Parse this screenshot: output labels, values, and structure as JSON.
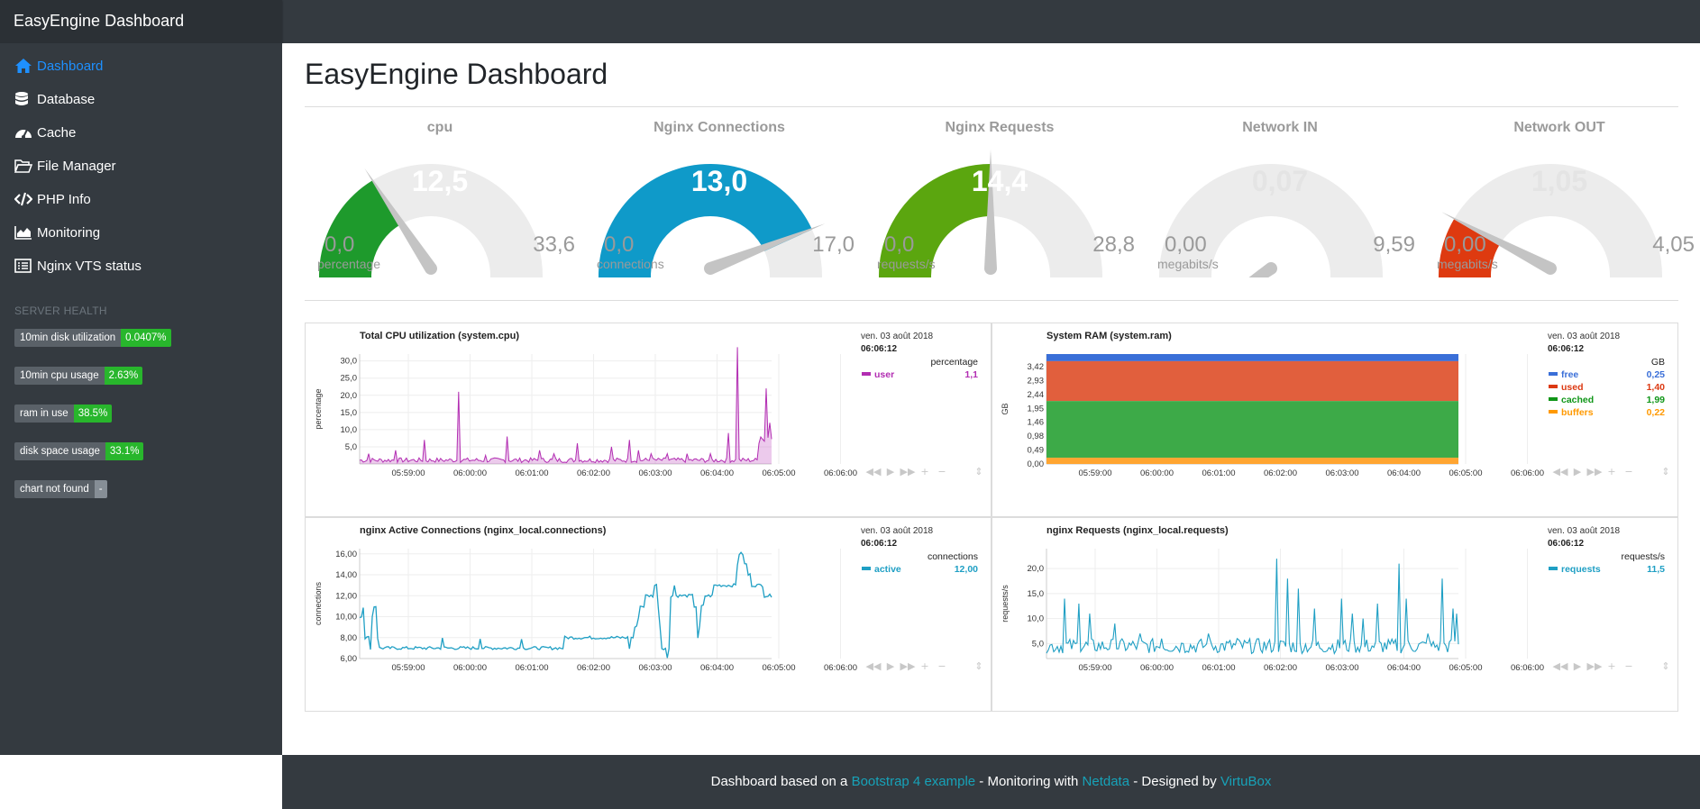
{
  "brand": "EasyEngine Dashboard",
  "nav": [
    {
      "label": "Dashboard",
      "icon": "home-icon"
    },
    {
      "label": "Database",
      "icon": "database-icon"
    },
    {
      "label": "Cache",
      "icon": "tachometer-icon"
    },
    {
      "label": "File Manager",
      "icon": "folder-open-icon"
    },
    {
      "label": "PHP Info",
      "icon": "code-icon"
    },
    {
      "label": "Monitoring",
      "icon": "area-chart-icon"
    },
    {
      "label": "Nginx VTS status",
      "icon": "list-icon"
    }
  ],
  "server_health": {
    "title": "SERVER HEALTH",
    "items": [
      {
        "label": "10min disk utilization",
        "value": "0.0407%"
      },
      {
        "label": "10min cpu usage",
        "value": "2.63%"
      },
      {
        "label": "ram in use",
        "value": "38.5%"
      },
      {
        "label": "disk space usage",
        "value": "33.1%"
      },
      {
        "label": "chart not found",
        "value": "-"
      }
    ]
  },
  "page_title": "EasyEngine Dashboard",
  "gauges": [
    {
      "title": "cpu",
      "value": "12,5",
      "min": "0,0",
      "max": "33,6",
      "unit": "percentage",
      "fraction": 0.372,
      "color": "#1e9a2c"
    },
    {
      "title": "Nginx Connections",
      "value": "13,0",
      "min": "0,0",
      "max": "17,0",
      "unit": "connections",
      "fraction": 0.765,
      "color": "#0f9ac9"
    },
    {
      "title": "Nginx Requests",
      "value": "14,4",
      "min": "0,0",
      "max": "28,8",
      "unit": "requests/s",
      "fraction": 0.5,
      "color": "#5ba60f"
    },
    {
      "title": "Network IN",
      "value": "0,07",
      "min": "0,00",
      "max": "9,59",
      "unit": "megabits/s",
      "fraction": 0.007,
      "color": "#cccccc"
    },
    {
      "title": "Network OUT",
      "value": "1,05",
      "min": "0,00",
      "max": "4,05",
      "unit": "megabits/s",
      "fraction": 0.259,
      "color": "#de3a10"
    }
  ],
  "charts": {
    "date": "ven. 03 août 2018",
    "time": "06:06:12",
    "x_ticks": [
      "05:59:00",
      "06:00:00",
      "06:01:00",
      "06:02:00",
      "06:03:00",
      "06:04:00",
      "06:05:00",
      "06:06:00"
    ],
    "cpu": {
      "title": "Total CPU utilization (system.cpu)",
      "ylabel": "percentage",
      "units": "percentage",
      "y_ticks": [
        "30,0",
        "25,0",
        "20,0",
        "15,0",
        "10,0",
        "5,0"
      ],
      "legend": [
        {
          "name": "user",
          "value": "1,1",
          "color": "#b22db2"
        }
      ]
    },
    "ram": {
      "title": "System RAM (system.ram)",
      "ylabel": "GB",
      "units": "GB",
      "y_ticks": [
        "3,42",
        "2,93",
        "2,44",
        "1,95",
        "1,46",
        "0,98",
        "0,49",
        "0,00"
      ],
      "legend": [
        {
          "name": "free",
          "value": "0,25",
          "color": "#3a6fd8"
        },
        {
          "name": "used",
          "value": "1,40",
          "color": "#dc3912"
        },
        {
          "name": "cached",
          "value": "1,99",
          "color": "#109618"
        },
        {
          "name": "buffers",
          "value": "0,22",
          "color": "#ff9900"
        }
      ]
    },
    "conn": {
      "title": "nginx Active Connections (nginx_local.connections)",
      "ylabel": "connections",
      "units": "connections",
      "y_ticks": [
        "16,00",
        "14,00",
        "12,00",
        "10,00",
        "8,00",
        "6,00"
      ],
      "legend": [
        {
          "name": "active",
          "value": "12,00",
          "color": "#1f9fc4"
        }
      ]
    },
    "req": {
      "title": "nginx Requests (nginx_local.requests)",
      "ylabel": "requests/s",
      "units": "requests/s",
      "y_ticks": [
        "20,0",
        "15,0",
        "10,0",
        "5,0"
      ],
      "legend": [
        {
          "name": "requests",
          "value": "11,5",
          "color": "#1f9fc4"
        }
      ]
    }
  },
  "footer": {
    "t1": "Dashboard based on a ",
    "l1": "Bootstrap 4 example",
    "t2": " - Monitoring with ",
    "l2": "Netdata",
    "t3": " - Designed by ",
    "l3": "VirtuBox"
  }
}
